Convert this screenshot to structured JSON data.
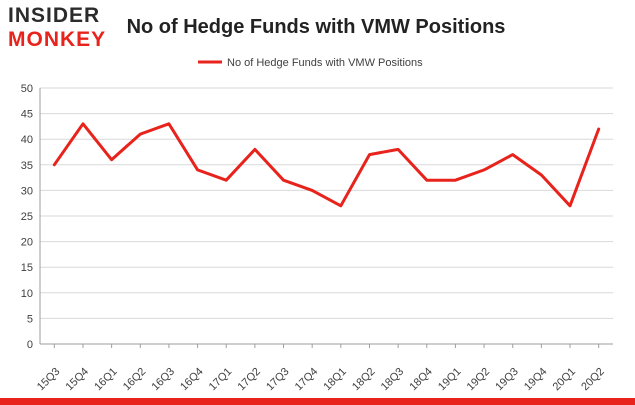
{
  "logo": {
    "line1": "INSIDER",
    "line2": "MONKEY"
  },
  "colors": {
    "series": "#e8231c",
    "logo_dark": "#2b2b2b",
    "logo_red": "#e8231c",
    "grid": "#d9d9d9",
    "axis_text": "#404040",
    "plot_border": "#9e9e9e",
    "footer_bar": "#e8231c"
  },
  "chart_data": {
    "type": "line",
    "title": "No of Hedge Funds with VMW Positions",
    "xlabel": "",
    "ylabel": "",
    "categories": [
      "15Q3",
      "15Q4",
      "16Q1",
      "16Q2",
      "16Q3",
      "16Q4",
      "17Q1",
      "17Q2",
      "17Q3",
      "17Q4",
      "18Q1",
      "18Q2",
      "18Q3",
      "18Q4",
      "19Q1",
      "19Q2",
      "19Q3",
      "19Q4",
      "20Q1",
      "20Q2"
    ],
    "series": [
      {
        "name": "No of Hedge Funds with VMW Positions",
        "values": [
          35,
          43,
          36,
          41,
          43,
          34,
          32,
          38,
          32,
          30,
          27,
          37,
          38,
          32,
          32,
          34,
          37,
          33,
          27,
          42
        ]
      }
    ],
    "ylim": [
      0,
      50
    ],
    "yticks": [
      0,
      5,
      10,
      15,
      20,
      25,
      30,
      35,
      40,
      45,
      50
    ],
    "grid": true,
    "legend": "top-center"
  }
}
